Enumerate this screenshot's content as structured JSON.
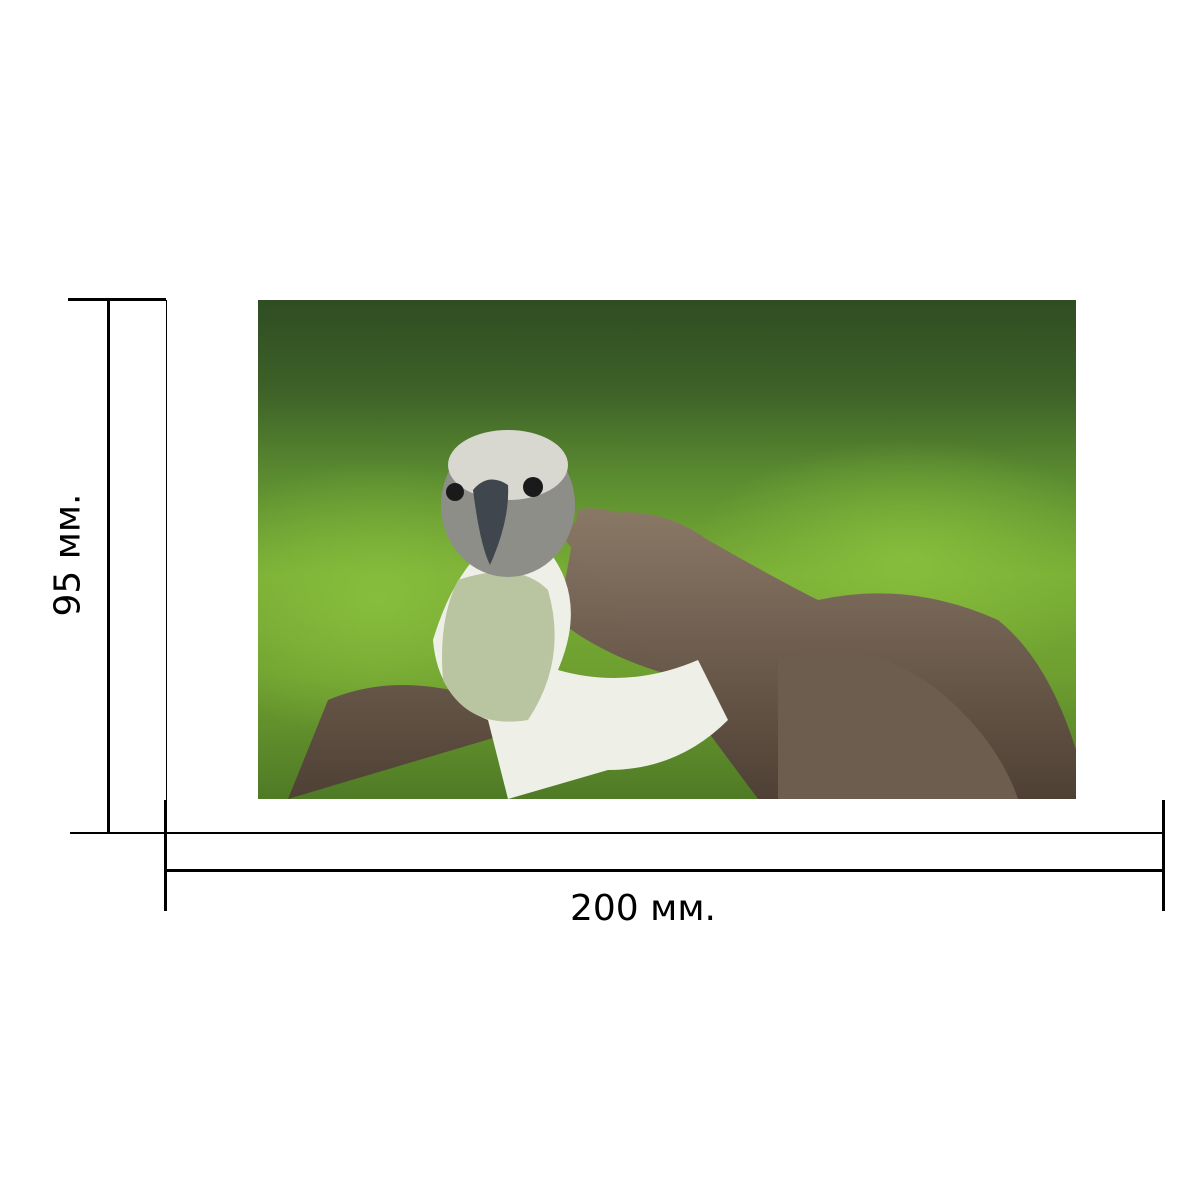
{
  "dimensions": {
    "width_label": "200 мм.",
    "height_label": "95 мм."
  },
  "photo": {
    "subject": "vulture",
    "colors": {
      "background": "#5a8a30",
      "feathers": "#7a6a5a",
      "neck": "#e8ece0"
    }
  }
}
